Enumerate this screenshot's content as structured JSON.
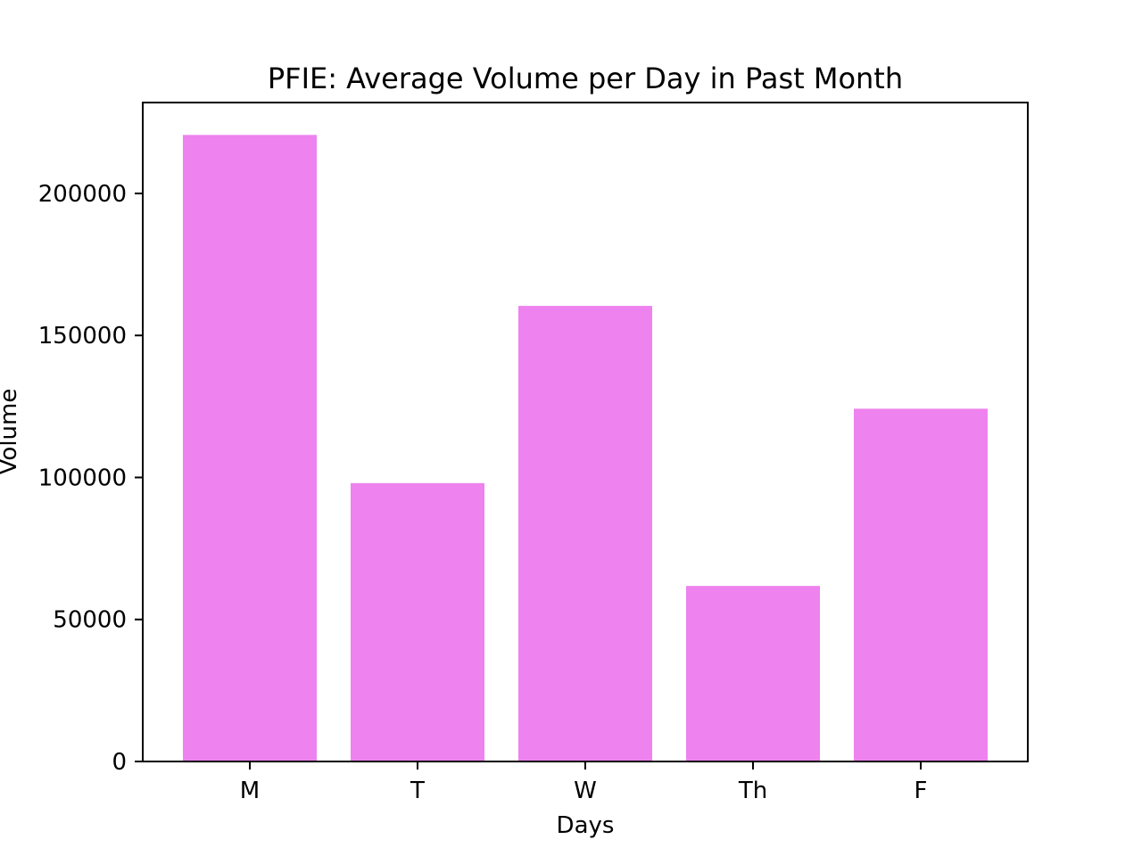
{
  "chart_data": {
    "type": "bar",
    "title": "PFIE: Average Volume per Day in Past Month",
    "xlabel": "Days",
    "ylabel": "Volume",
    "categories": [
      "M",
      "T",
      "W",
      "Th",
      "F"
    ],
    "values": [
      220600,
      98000,
      160400,
      61800,
      124200
    ],
    "ylim": [
      0,
      232000
    ],
    "yticks": [
      0,
      50000,
      100000,
      150000,
      200000
    ],
    "ytick_labels": [
      "0",
      "50000",
      "100000",
      "150000",
      "200000"
    ],
    "bar_color": "#ee82ee",
    "grid": false,
    "legend": "none"
  }
}
